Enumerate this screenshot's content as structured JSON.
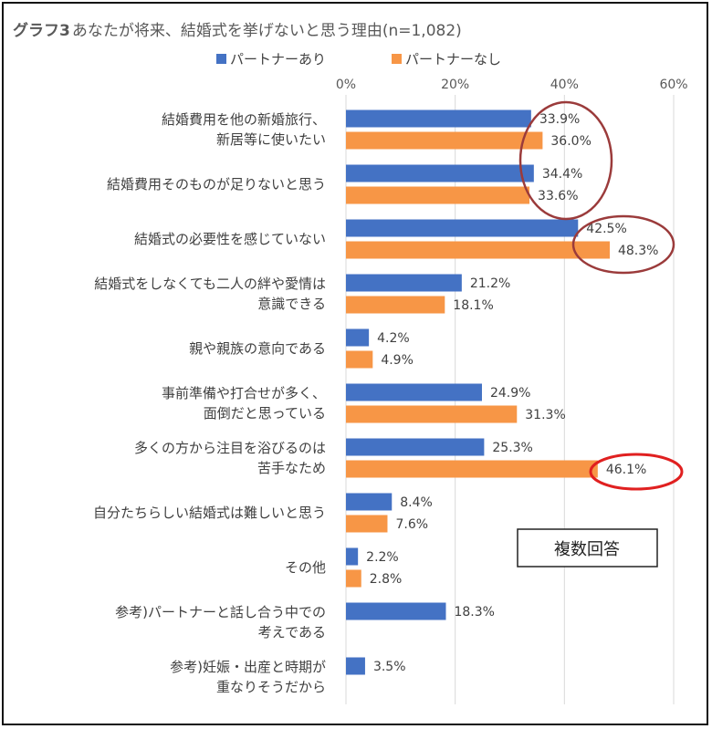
{
  "chart_data": {
    "type": "bar",
    "orientation": "horizontal",
    "title_lead": "グラフ3",
    "title_rest": "あなたが将来、結婚式を挙げないと思う理由(n=1,082)",
    "xlim": [
      0,
      60
    ],
    "xticks": [
      "0%",
      "20%",
      "40%",
      "60%"
    ],
    "grid": true,
    "legend_position": "top",
    "note": "複数回答",
    "categories": [
      [
        "結婚費用を他の新婚旅行、",
        "新居等に使いたい"
      ],
      [
        "結婚費用そのものが足りないと思う"
      ],
      [
        "結婚式の必要性を感じていない"
      ],
      [
        "結婚式をしなくても二人の絆や愛情は",
        "意識できる"
      ],
      [
        "親や親族の意向である"
      ],
      [
        "事前準備や打合せが多く、",
        "面倒だと思っている"
      ],
      [
        "多くの方から注目を浴びるのは",
        "苦手なため"
      ],
      [
        "自分たちらしい結婚式は難しいと思う"
      ],
      [
        "その他"
      ],
      [
        "参考)パートナーと話し合う中での",
        "考えである"
      ],
      [
        "参考)妊娠・出産と時期が",
        "重なりそうだから"
      ]
    ],
    "series": [
      {
        "name": "パートナーあり",
        "color": "#4472C4",
        "values": [
          33.9,
          34.4,
          42.5,
          21.2,
          4.2,
          24.9,
          25.3,
          8.4,
          2.2,
          18.3,
          3.5
        ],
        "labels": [
          "33.9%",
          "34.4%",
          "42.5%",
          "21.2%",
          "4.2%",
          "24.9%",
          "25.3%",
          "8.4%",
          "2.2%",
          "18.3%",
          "3.5%"
        ]
      },
      {
        "name": "パートナーなし",
        "color": "#F79646",
        "values": [
          36.0,
          33.6,
          48.3,
          18.1,
          4.9,
          31.3,
          46.1,
          7.6,
          2.8,
          null,
          null
        ],
        "labels": [
          "36.0%",
          "33.6%",
          "48.3%",
          "18.1%",
          "4.9%",
          "31.3%",
          "46.1%",
          "7.6%",
          "2.8%",
          null,
          null
        ]
      }
    ]
  }
}
